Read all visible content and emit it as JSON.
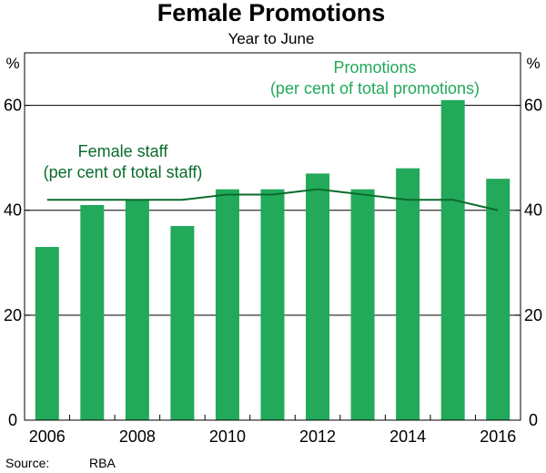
{
  "chart_data": {
    "type": "bar",
    "title": "Female Promotions",
    "subtitle": "Year to June",
    "y_unit": "%",
    "ylim": [
      0,
      70
    ],
    "y_ticks": [
      0,
      20,
      40,
      60
    ],
    "x_tick_labels": [
      "2006",
      "2008",
      "2010",
      "2012",
      "2014",
      "2016"
    ],
    "categories": [
      "2006",
      "2007",
      "2008",
      "2009",
      "2010",
      "2011",
      "2012",
      "2013",
      "2014",
      "2015",
      "2016"
    ],
    "series": [
      {
        "kind": "bar",
        "label_lines": [
          "Promotions",
          "(per cent of total promotions)"
        ],
        "color": "#22a95a",
        "values": [
          33,
          41,
          42,
          37,
          44,
          44,
          47,
          44,
          48,
          61,
          46
        ]
      },
      {
        "kind": "line",
        "label_lines": [
          "Female staff",
          "(per cent of total staff)"
        ],
        "color": "#0a6b2a",
        "values": [
          42,
          42,
          42,
          42,
          43,
          43,
          44,
          43,
          42,
          42,
          40
        ]
      }
    ],
    "grid": "horizontal",
    "source_label": "Source:",
    "source": "RBA"
  }
}
